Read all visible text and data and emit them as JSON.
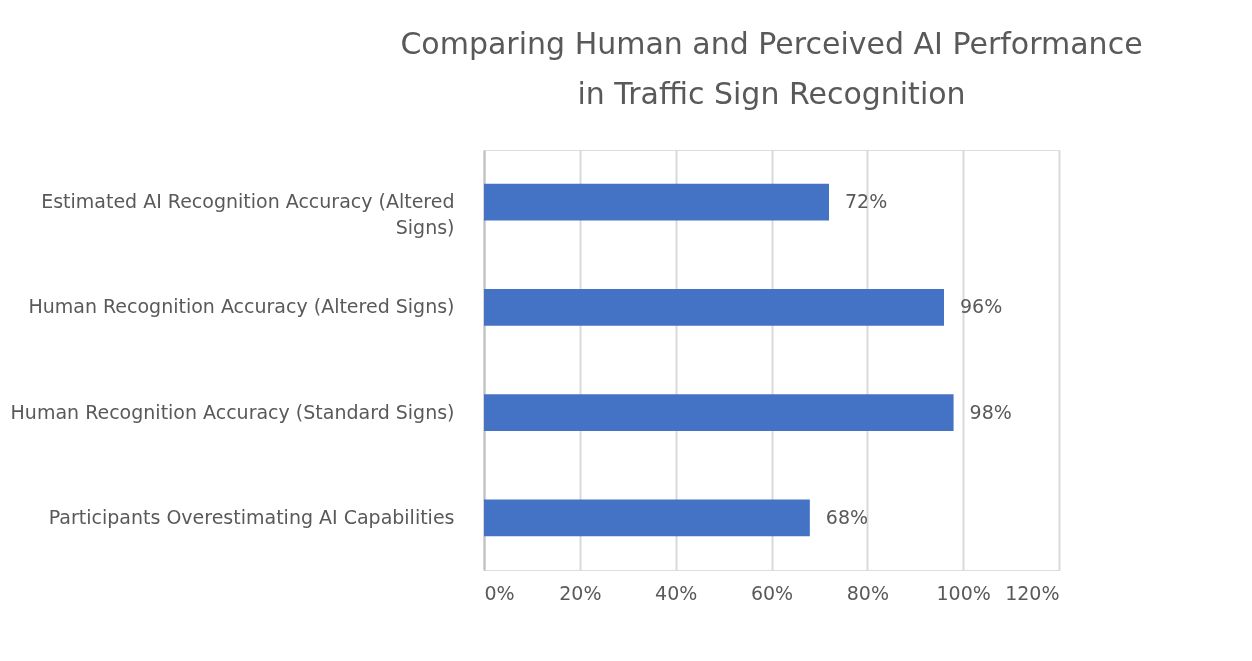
{
  "chart_data": {
    "type": "bar",
    "orientation": "horizontal",
    "title": [
      "Comparing Human and Perceived AI Performance",
      "in Traffic Sign Recognition"
    ],
    "categories": [
      "Estimated AI Recognition Accuracy (Altered Signs)",
      "Human Recognition Accuracy (Altered Signs)",
      "Human Recognition Accuracy (Standard Signs)",
      "Participants Overestimating AI Capabilities"
    ],
    "values": [
      72,
      96,
      98,
      68
    ],
    "value_labels": [
      "72%",
      "96%",
      "98%",
      "68%"
    ],
    "color": "#4472c4",
    "xlim": [
      0,
      120
    ],
    "xticks": [
      {
        "value": 0,
        "label": "0%"
      },
      {
        "value": 20,
        "label": "20%"
      },
      {
        "value": 40,
        "label": "40%"
      },
      {
        "value": 60,
        "label": "60%"
      },
      {
        "value": 80,
        "label": "80%"
      },
      {
        "value": 100,
        "label": "100%"
      },
      {
        "value": 120,
        "label": "120%"
      }
    ],
    "grid": "x"
  }
}
